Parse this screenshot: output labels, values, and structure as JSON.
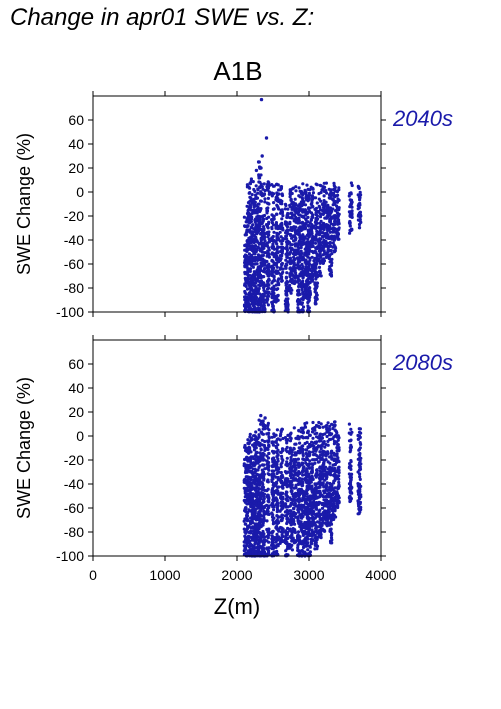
{
  "title": "Change in apr01 SWE vs. Z:",
  "scenario": "A1B",
  "colors": {
    "points": "#1a1aaa",
    "axis": "#000000"
  },
  "chart_data": [
    {
      "type": "scatter",
      "panel_label": "2040s",
      "xlabel": "",
      "ylabel": "SWE Change (%)",
      "xlim": [
        0,
        4000
      ],
      "ylim": [
        -100,
        80
      ],
      "yticks": [
        -100,
        -80,
        -60,
        -40,
        -20,
        0,
        20,
        40,
        60
      ],
      "columns": [
        {
          "x": 2120,
          "ymin": -100,
          "ymax": -20
        },
        {
          "x": 2160,
          "ymin": -100,
          "ymax": 12
        },
        {
          "x": 2200,
          "ymin": -100,
          "ymax": 13
        },
        {
          "x": 2240,
          "ymin": -100,
          "ymax": 12
        },
        {
          "x": 2280,
          "ymin": -100,
          "ymax": 8
        },
        {
          "x": 2320,
          "ymin": -100,
          "ymax": 28
        },
        {
          "x": 2370,
          "ymin": -100,
          "ymax": 10
        },
        {
          "x": 2430,
          "ymin": -95,
          "ymax": 12
        },
        {
          "x": 2500,
          "ymin": -100,
          "ymax": 8
        },
        {
          "x": 2560,
          "ymin": -92,
          "ymax": 8
        },
        {
          "x": 2620,
          "ymin": -75,
          "ymax": 6
        },
        {
          "x": 2690,
          "ymin": -100,
          "ymax": 6
        },
        {
          "x": 2750,
          "ymin": -85,
          "ymax": 5
        },
        {
          "x": 2800,
          "ymin": -80,
          "ymax": 7
        },
        {
          "x": 2860,
          "ymin": -100,
          "ymax": 8
        },
        {
          "x": 2910,
          "ymin": -100,
          "ymax": 7
        },
        {
          "x": 2960,
          "ymin": -90,
          "ymax": 7
        },
        {
          "x": 3000,
          "ymin": -100,
          "ymax": 8
        },
        {
          "x": 3050,
          "ymin": -75,
          "ymax": 8
        },
        {
          "x": 3100,
          "ymin": -95,
          "ymax": 8
        },
        {
          "x": 3150,
          "ymin": -70,
          "ymax": 8
        },
        {
          "x": 3200,
          "ymin": -60,
          "ymax": 8
        },
        {
          "x": 3250,
          "ymin": -55,
          "ymax": 8
        },
        {
          "x": 3300,
          "ymin": -70,
          "ymax": 8
        },
        {
          "x": 3350,
          "ymin": -50,
          "ymax": 8
        },
        {
          "x": 3400,
          "ymin": -40,
          "ymax": 8
        },
        {
          "x": 3580,
          "ymin": -35,
          "ymax": 8
        },
        {
          "x": 3700,
          "ymin": -30,
          "ymax": 8
        }
      ],
      "outliers": [
        {
          "x": 2340,
          "y": 77
        },
        {
          "x": 2410,
          "y": 45
        },
        {
          "x": 2350,
          "y": 30
        },
        {
          "x": 2300,
          "y": 25
        },
        {
          "x": 2270,
          "y": 18
        }
      ]
    },
    {
      "type": "scatter",
      "panel_label": "2080s",
      "xlabel": "Z(m)",
      "ylabel": "SWE Change (%)",
      "xlim": [
        0,
        4000
      ],
      "ylim": [
        -100,
        80
      ],
      "yticks": [
        -100,
        -80,
        -60,
        -40,
        -20,
        0,
        20,
        40,
        60
      ],
      "xticks": [
        0,
        1000,
        2000,
        3000,
        4000
      ],
      "columns": [
        {
          "x": 2120,
          "ymin": -100,
          "ymax": -5
        },
        {
          "x": 2160,
          "ymin": -100,
          "ymax": 0
        },
        {
          "x": 2200,
          "ymin": -100,
          "ymax": 2
        },
        {
          "x": 2240,
          "ymin": -100,
          "ymax": 5
        },
        {
          "x": 2280,
          "ymin": -100,
          "ymax": 0
        },
        {
          "x": 2320,
          "ymin": -100,
          "ymax": 17
        },
        {
          "x": 2370,
          "ymin": -100,
          "ymax": 15
        },
        {
          "x": 2430,
          "ymin": -100,
          "ymax": 12
        },
        {
          "x": 2500,
          "ymin": -100,
          "ymax": 5
        },
        {
          "x": 2560,
          "ymin": -100,
          "ymax": 8
        },
        {
          "x": 2620,
          "ymin": -90,
          "ymax": 6
        },
        {
          "x": 2690,
          "ymin": -100,
          "ymax": 6
        },
        {
          "x": 2750,
          "ymin": -95,
          "ymax": 5
        },
        {
          "x": 2800,
          "ymin": -90,
          "ymax": 8
        },
        {
          "x": 2860,
          "ymin": -100,
          "ymax": 10
        },
        {
          "x": 2910,
          "ymin": -100,
          "ymax": 10
        },
        {
          "x": 2960,
          "ymin": -100,
          "ymax": 11
        },
        {
          "x": 3000,
          "ymin": -100,
          "ymax": 12
        },
        {
          "x": 3050,
          "ymin": -90,
          "ymax": 12
        },
        {
          "x": 3100,
          "ymin": -95,
          "ymax": 12
        },
        {
          "x": 3150,
          "ymin": -85,
          "ymax": 12
        },
        {
          "x": 3200,
          "ymin": -80,
          "ymax": 12
        },
        {
          "x": 3250,
          "ymin": -75,
          "ymax": 12
        },
        {
          "x": 3300,
          "ymin": -90,
          "ymax": 12
        },
        {
          "x": 3350,
          "ymin": -70,
          "ymax": 12
        },
        {
          "x": 3400,
          "ymin": -60,
          "ymax": 12
        },
        {
          "x": 3580,
          "ymin": -55,
          "ymax": 10
        },
        {
          "x": 3700,
          "ymin": -65,
          "ymax": 10
        }
      ],
      "outliers": [
        {
          "x": 2330,
          "y": 17
        },
        {
          "x": 2390,
          "y": 15
        }
      ]
    }
  ]
}
